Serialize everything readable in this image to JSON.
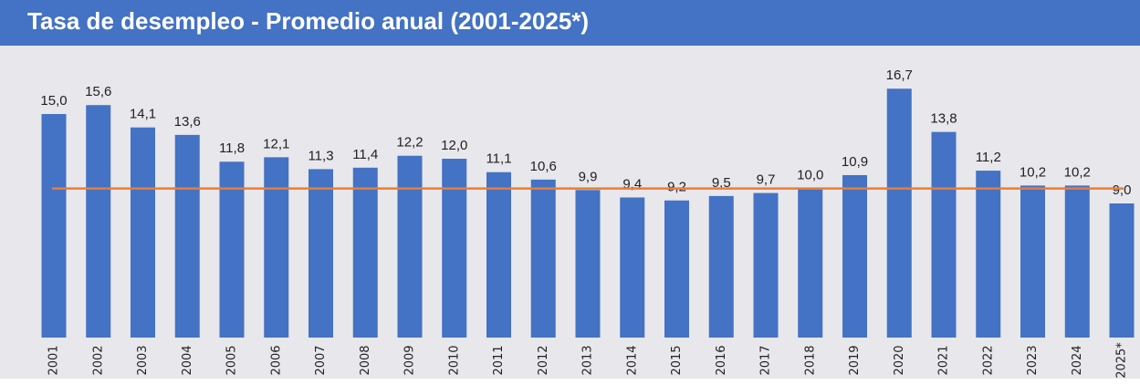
{
  "chart_data": {
    "type": "bar",
    "title": "Tasa de desempleo - Promedio anual (2001-2025*)",
    "categories": [
      "2001",
      "2002",
      "2003",
      "2004",
      "2005",
      "2006",
      "2007",
      "2008",
      "2009",
      "2010",
      "2011",
      "2012",
      "2013",
      "2014",
      "2015",
      "2016",
      "2017",
      "2018",
      "2019",
      "2020",
      "2021",
      "2022",
      "2023",
      "2024",
      "2025*"
    ],
    "values": [
      15.0,
      15.6,
      14.1,
      13.6,
      11.8,
      12.1,
      11.3,
      11.4,
      12.2,
      12.0,
      11.1,
      10.6,
      9.9,
      9.4,
      9.2,
      9.5,
      9.7,
      10.0,
      10.9,
      16.7,
      13.8,
      11.2,
      10.2,
      10.2,
      9.0
    ],
    "value_labels": [
      "15,0",
      "15,6",
      "14,1",
      "13,6",
      "11,8",
      "12,1",
      "11,3",
      "11,4",
      "12,2",
      "12,0",
      "11,1",
      "10,6",
      "9,9",
      "9,4",
      "9,2",
      "9,5",
      "9,7",
      "10,0",
      "10,9",
      "16,7",
      "13,8",
      "11,2",
      "10,2",
      "10,2",
      "9,0"
    ],
    "color": "#4472c4",
    "reference_line": {
      "value": 10.0,
      "color": "#ed7d31"
    },
    "ylim": [
      0,
      18
    ]
  }
}
